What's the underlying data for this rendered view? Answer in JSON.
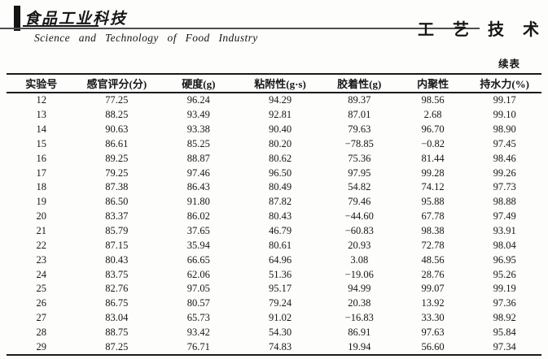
{
  "masthead": {
    "logo_text": "食品工业科技",
    "journal_name_en": "Science  and  Technology  of  Food  Industry",
    "section_title": "工 艺 技 术"
  },
  "continued_label": "续表",
  "table": {
    "columns": [
      "实验号",
      "感官评分(分)",
      "硬度(g)",
      "粘附性(g·s)",
      "胶着性(g)",
      "内聚性",
      "持水力(%)"
    ],
    "rows": [
      [
        "12",
        "77.25",
        "96.24",
        "94.29",
        "89.37",
        "98.56",
        "99.17"
      ],
      [
        "13",
        "88.25",
        "93.49",
        "92.81",
        "87.01",
        "2.68",
        "99.10"
      ],
      [
        "14",
        "90.63",
        "93.38",
        "90.40",
        "79.63",
        "96.70",
        "98.90"
      ],
      [
        "15",
        "86.61",
        "85.25",
        "80.20",
        "−78.85",
        "−0.82",
        "97.45"
      ],
      [
        "16",
        "89.25",
        "88.87",
        "80.62",
        "75.36",
        "81.44",
        "98.46"
      ],
      [
        "17",
        "79.25",
        "97.46",
        "96.50",
        "97.95",
        "99.28",
        "99.26"
      ],
      [
        "18",
        "87.38",
        "86.43",
        "80.49",
        "54.82",
        "74.12",
        "97.73"
      ],
      [
        "19",
        "86.50",
        "91.80",
        "87.82",
        "79.46",
        "95.88",
        "98.88"
      ],
      [
        "20",
        "83.37",
        "86.02",
        "80.43",
        "−44.60",
        "67.78",
        "97.49"
      ],
      [
        "21",
        "85.79",
        "37.65",
        "46.79",
        "−60.83",
        "98.38",
        "93.91"
      ],
      [
        "22",
        "87.15",
        "35.94",
        "80.61",
        "20.93",
        "72.78",
        "98.04"
      ],
      [
        "23",
        "80.43",
        "66.65",
        "64.96",
        "3.08",
        "48.56",
        "96.95"
      ],
      [
        "24",
        "83.75",
        "62.06",
        "51.36",
        "−19.06",
        "28.76",
        "95.26"
      ],
      [
        "25",
        "82.76",
        "97.05",
        "95.17",
        "94.99",
        "99.07",
        "99.19"
      ],
      [
        "26",
        "86.75",
        "80.57",
        "79.24",
        "20.38",
        "13.92",
        "97.36"
      ],
      [
        "27",
        "83.04",
        "65.73",
        "91.02",
        "−16.83",
        "33.30",
        "98.92"
      ],
      [
        "28",
        "88.75",
        "93.42",
        "54.30",
        "86.91",
        "97.63",
        "95.84"
      ],
      [
        "29",
        "87.25",
        "76.71",
        "74.83",
        "19.94",
        "56.60",
        "97.34"
      ]
    ],
    "column_widths": [
      "13%",
      "15.2%",
      "15.4%",
      "15.1%",
      "14.5%",
      "13%",
      "13.8%"
    ]
  }
}
